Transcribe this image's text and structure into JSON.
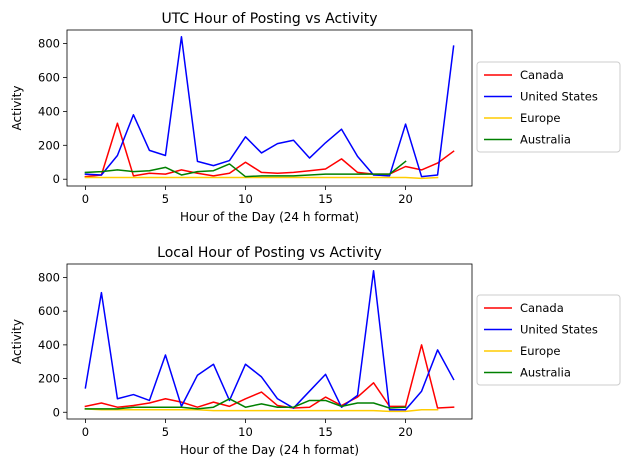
{
  "chart_data": [
    {
      "type": "line",
      "title": "UTC Hour of Posting vs Activity",
      "xlabel": "Hour of the Day (24 h format)",
      "ylabel": "Activity",
      "xlim": [
        -1.15,
        24.15
      ],
      "ylim": [
        -40,
        880
      ],
      "xticks": [
        0,
        5,
        10,
        15,
        20
      ],
      "yticks": [
        0,
        200,
        400,
        600,
        800
      ],
      "legend_position": "right-outside",
      "series": [
        {
          "name": "Canada",
          "color": "#ff0000",
          "x": [
            0,
            1,
            2,
            3,
            4,
            5,
            6,
            7,
            8,
            9,
            10,
            11,
            12,
            13,
            14,
            15,
            16,
            17,
            18,
            19,
            20,
            21,
            22,
            23
          ],
          "y": [
            15,
            25,
            330,
            20,
            35,
            30,
            55,
            35,
            20,
            35,
            100,
            40,
            35,
            40,
            50,
            60,
            120,
            40,
            30,
            30,
            75,
            55,
            95,
            165
          ]
        },
        {
          "name": "United States",
          "color": "#0000ff",
          "x": [
            0,
            1,
            2,
            3,
            4,
            5,
            6,
            7,
            8,
            9,
            10,
            11,
            12,
            13,
            14,
            15,
            16,
            17,
            18,
            19,
            20,
            21,
            22,
            23
          ],
          "y": [
            30,
            25,
            140,
            380,
            170,
            140,
            840,
            105,
            80,
            110,
            250,
            155,
            210,
            230,
            125,
            215,
            295,
            135,
            25,
            20,
            325,
            15,
            25,
            785
          ]
        },
        {
          "name": "Europe",
          "color": "#ffcc00",
          "x": [
            0,
            1,
            2,
            3,
            4,
            5,
            6,
            7,
            8,
            9,
            10,
            11,
            12,
            13,
            14,
            15,
            16,
            17,
            18,
            19,
            20,
            21,
            22,
            23
          ],
          "y": [
            10,
            10,
            10,
            10,
            10,
            10,
            10,
            10,
            10,
            10,
            10,
            10,
            10,
            10,
            10,
            10,
            10,
            10,
            10,
            10,
            10,
            5,
            10,
            null
          ]
        },
        {
          "name": "Australia",
          "color": "#008000",
          "x": [
            0,
            1,
            2,
            3,
            4,
            5,
            6,
            7,
            8,
            9,
            10,
            11,
            12,
            13,
            14,
            15,
            16,
            17,
            18,
            19,
            20
          ],
          "y": [
            40,
            45,
            55,
            45,
            50,
            70,
            25,
            45,
            50,
            90,
            15,
            20,
            20,
            20,
            25,
            30,
            30,
            30,
            30,
            30,
            105
          ]
        }
      ]
    },
    {
      "type": "line",
      "title": "Local Hour of Posting vs Activity",
      "xlabel": "Hour of the Day (24 h format)",
      "ylabel": "Activity",
      "xlim": [
        -1.15,
        24.15
      ],
      "ylim": [
        -40,
        880
      ],
      "xticks": [
        0,
        5,
        10,
        15,
        20
      ],
      "yticks": [
        0,
        200,
        400,
        600,
        800
      ],
      "legend_position": "right-outside",
      "series": [
        {
          "name": "Canada",
          "color": "#ff0000",
          "x": [
            0,
            1,
            2,
            3,
            4,
            5,
            6,
            7,
            8,
            9,
            10,
            11,
            12,
            13,
            14,
            15,
            16,
            17,
            18,
            19,
            20,
            21,
            22,
            23
          ],
          "y": [
            35,
            55,
            30,
            40,
            55,
            80,
            60,
            30,
            60,
            35,
            80,
            120,
            40,
            25,
            30,
            90,
            40,
            90,
            175,
            35,
            35,
            400,
            25,
            30
          ]
        },
        {
          "name": "United States",
          "color": "#0000ff",
          "x": [
            0,
            1,
            2,
            3,
            4,
            5,
            6,
            7,
            8,
            9,
            10,
            11,
            12,
            13,
            14,
            15,
            16,
            17,
            18,
            19,
            20,
            21,
            22,
            23
          ],
          "y": [
            145,
            710,
            80,
            105,
            70,
            340,
            35,
            220,
            285,
            70,
            285,
            210,
            80,
            25,
            125,
            225,
            30,
            100,
            840,
            15,
            15,
            125,
            370,
            195
          ]
        },
        {
          "name": "Europe",
          "color": "#ffcc00",
          "x": [
            0,
            1,
            2,
            3,
            4,
            5,
            6,
            7,
            8,
            9,
            10,
            11,
            12,
            13,
            14,
            15,
            16,
            17,
            18,
            19,
            20,
            21,
            22
          ],
          "y": [
            20,
            15,
            15,
            15,
            15,
            15,
            15,
            15,
            10,
            10,
            10,
            10,
            10,
            10,
            10,
            10,
            10,
            10,
            10,
            5,
            5,
            15,
            15
          ]
        },
        {
          "name": "Australia",
          "color": "#008000",
          "x": [
            0,
            1,
            2,
            3,
            4,
            5,
            6,
            7,
            8,
            9,
            10,
            11,
            12,
            13,
            14,
            15,
            16,
            17,
            18,
            19,
            20
          ],
          "y": [
            20,
            20,
            20,
            30,
            30,
            30,
            30,
            20,
            30,
            80,
            30,
            50,
            30,
            30,
            70,
            70,
            35,
            55,
            55,
            25,
            30
          ]
        }
      ]
    }
  ]
}
